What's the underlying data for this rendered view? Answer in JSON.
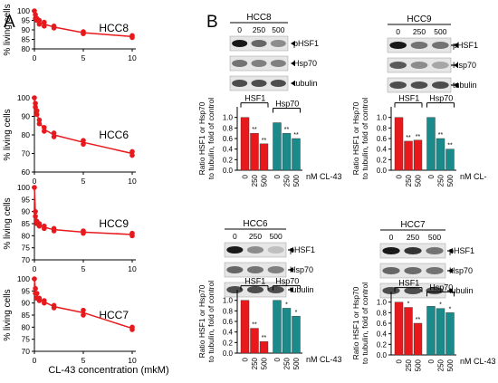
{
  "panels": {
    "a": "A",
    "b": "B"
  },
  "viability_ylabel": "% living cells",
  "viability_xlabel": "CL-43 concentration (mkM)",
  "bar_ylabel": "Ratio HSF1 or Hsp70 to tubulin, fold of control",
  "bar_xunit": "nM CL-43",
  "blot_labels": [
    "pHSF1",
    "Hsp70",
    "tubulin"
  ],
  "colors": {
    "line": "#e8191c",
    "hsf1_bar": "#e8191c",
    "hsp70_bar": "#1a8a8a"
  },
  "chart_data": [
    {
      "type": "line",
      "name": "HCC8",
      "title": "HCC8",
      "xlabel": "",
      "ylabel": "% living cells",
      "xlim": [
        0,
        10
      ],
      "ylim": [
        80,
        100
      ],
      "yticks": [
        80,
        85,
        90,
        95,
        100
      ],
      "xticks": [
        0,
        5,
        10
      ],
      "x": [
        0,
        0.1,
        0.25,
        0.5,
        1,
        2,
        5,
        10
      ],
      "y": [
        100,
        98,
        96,
        95,
        94,
        92,
        89,
        87
      ],
      "y2": [
        null,
        96,
        95,
        93,
        92,
        91,
        88,
        86
      ]
    },
    {
      "type": "line",
      "name": "HCC6",
      "title": "HCC6",
      "xlabel": "",
      "ylabel": "% living cells",
      "xlim": [
        0,
        10
      ],
      "ylim": [
        60,
        100
      ],
      "yticks": [
        60,
        70,
        80,
        90,
        100
      ],
      "xticks": [
        0,
        5,
        10
      ],
      "x": [
        0,
        0.1,
        0.25,
        0.5,
        1,
        2,
        5,
        10
      ],
      "y": [
        100,
        97,
        93,
        88,
        84,
        81,
        77,
        71
      ],
      "y2": [
        null,
        95,
        91,
        86,
        82,
        79,
        75,
        69
      ]
    },
    {
      "type": "line",
      "name": "HCC9",
      "title": "HCC9",
      "xlabel": "",
      "ylabel": "% living cells",
      "xlim": [
        0,
        10
      ],
      "ylim": [
        70,
        100
      ],
      "yticks": [
        70,
        75,
        80,
        85,
        90,
        95,
        100
      ],
      "xticks": [
        0,
        5,
        10
      ],
      "x": [
        0,
        0.1,
        0.25,
        0.5,
        1,
        2,
        5,
        10
      ],
      "y": [
        100,
        90,
        86,
        85,
        84,
        83,
        82,
        81
      ],
      "y2": [
        null,
        88,
        85,
        84,
        83,
        82,
        81,
        80
      ]
    },
    {
      "type": "line",
      "name": "HCC7",
      "title": "HCC7",
      "xlabel": "CL-43 concentration (mkM)",
      "ylabel": "% living cells",
      "xlim": [
        0,
        10
      ],
      "ylim": [
        70,
        100
      ],
      "yticks": [
        70,
        75,
        80,
        85,
        90,
        95,
        100
      ],
      "xticks": [
        0,
        5,
        10
      ],
      "x": [
        0,
        0.1,
        0.25,
        0.5,
        1,
        2,
        5,
        10
      ],
      "y": [
        100,
        96,
        94,
        92,
        91,
        89,
        87,
        80
      ],
      "y2": [
        null,
        94,
        92,
        91,
        90,
        88,
        85,
        79
      ]
    },
    {
      "type": "bar",
      "name": "HCC8",
      "title": "HCC8",
      "groups": [
        "HSF1",
        "Hsp70"
      ],
      "categories": [
        "0",
        "250",
        "500"
      ],
      "xlabel": "nM CL-43",
      "ylabel": "Ratio HSF1 or Hsp70 to tubulin, fold of control",
      "ylim": [
        0,
        1.2
      ],
      "yticks": [
        0.0,
        0.2,
        0.4,
        0.6,
        0.8,
        1.0
      ],
      "series": [
        {
          "name": "HSF1",
          "values": [
            1.0,
            0.7,
            0.5
          ],
          "sig": [
            "",
            "**",
            "**"
          ]
        },
        {
          "name": "Hsp70",
          "values": [
            0.9,
            0.7,
            0.6
          ],
          "sig": [
            "",
            "**",
            "**"
          ]
        }
      ]
    },
    {
      "type": "bar",
      "name": "HCC9",
      "title": "HCC9",
      "groups": [
        "HSF1",
        "Hsp70"
      ],
      "categories": [
        "0",
        "250",
        "500"
      ],
      "xlabel": "nM CL-",
      "ylabel": "Ratio HSF1 or Hsp70 to tubulin, fold of control",
      "ylim": [
        0,
        1.2
      ],
      "yticks": [
        0.0,
        0.2,
        0.4,
        0.6,
        0.8,
        1.0
      ],
      "series": [
        {
          "name": "HSF1",
          "values": [
            1.0,
            0.55,
            0.57
          ],
          "sig": [
            "",
            "**",
            "**"
          ]
        },
        {
          "name": "Hsp70",
          "values": [
            1.0,
            0.6,
            0.4
          ],
          "sig": [
            "",
            "**",
            "**"
          ]
        }
      ]
    },
    {
      "type": "bar",
      "name": "HCC6",
      "title": "HCC6",
      "groups": [
        "HSF1",
        "Hsp70"
      ],
      "categories": [
        "0",
        "250",
        "500"
      ],
      "xlabel": "nM CL-43",
      "ylabel": "Ratio HSF1 or Hsp70 to tubulin, fold of control",
      "ylim": [
        0,
        1.2
      ],
      "yticks": [
        0.0,
        0.2,
        0.4,
        0.6,
        0.8,
        1.0
      ],
      "series": [
        {
          "name": "HSF1",
          "values": [
            1.0,
            0.47,
            0.22
          ],
          "sig": [
            "",
            "**",
            "**"
          ]
        },
        {
          "name": "Hsp70",
          "values": [
            1.0,
            0.85,
            0.7
          ],
          "sig": [
            "",
            "*",
            "*"
          ]
        }
      ]
    },
    {
      "type": "bar",
      "name": "HCC7",
      "title": "HCC7",
      "groups": [
        "HSF1",
        "Hsp70"
      ],
      "categories": [
        "0",
        "250",
        "500"
      ],
      "xlabel": "nM CL-43",
      "ylabel": "Ratio HSF1 or Hsp70 to tubulin, fold of control",
      "ylim": [
        0,
        1.2
      ],
      "yticks": [
        0.0,
        0.2,
        0.4,
        0.6,
        0.8,
        1.0
      ],
      "series": [
        {
          "name": "HSF1",
          "values": [
            1.0,
            0.9,
            0.6
          ],
          "sig": [
            "",
            "*",
            "**"
          ]
        },
        {
          "name": "Hsp70",
          "values": [
            0.92,
            0.88,
            0.8
          ],
          "sig": [
            "",
            "*",
            "*"
          ]
        }
      ]
    }
  ],
  "blots": [
    {
      "title": "HCC8",
      "doses": [
        "0",
        "250",
        "500"
      ]
    },
    {
      "title": "HCC9",
      "doses": [
        "0",
        "250",
        "500"
      ]
    },
    {
      "title": "HCC6",
      "doses": [
        "0",
        "250",
        "500"
      ]
    },
    {
      "title": "HCC7",
      "doses": [
        "0",
        "250",
        "500"
      ]
    }
  ]
}
